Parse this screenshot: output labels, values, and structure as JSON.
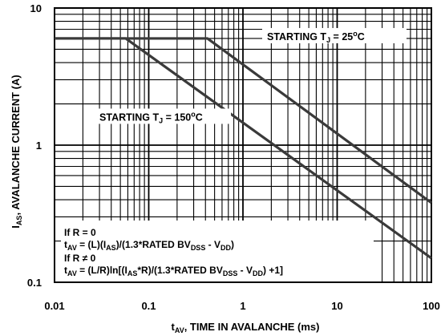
{
  "chart_data": {
    "type": "line",
    "xscale": "log",
    "yscale": "log",
    "xlim": [
      0.01,
      100
    ],
    "ylim": [
      0.1,
      10
    ],
    "grid": true,
    "x_ticks": [
      {
        "value": 0.01,
        "label": "0.01"
      },
      {
        "value": 0.1,
        "label": "0.1"
      },
      {
        "value": 1,
        "label": "1"
      },
      {
        "value": 10,
        "label": "10"
      },
      {
        "value": 100,
        "label": "100"
      }
    ],
    "y_ticks": [
      {
        "value": 0.1,
        "label": "0.1"
      },
      {
        "value": 1,
        "label": "1"
      },
      {
        "value": 10,
        "label": "10"
      }
    ],
    "xlabel": {
      "main": "t",
      "sub": "AV",
      "rest": ", TIME IN AVALANCHE (ms)"
    },
    "ylabel": {
      "main": "I",
      "sub": "AS",
      "rest": ", AVALANCHE CURRENT (A)"
    },
    "series": [
      {
        "name": "STARTING TJ = 25°C",
        "label_parts": {
          "a": "STARTING T",
          "sub": "J",
          "b": " = 25",
          "sup": "o",
          "c": "C"
        },
        "label_anchor": {
          "x": 1.8,
          "y": 6.0
        },
        "points": [
          [
            0.01,
            6.0
          ],
          [
            0.42,
            6.0
          ],
          [
            100,
            0.38
          ]
        ]
      },
      {
        "name": "STARTING TJ = 150°C",
        "label_parts": {
          "a": "STARTING T",
          "sub": "J",
          "b": " = 150",
          "sup": "o",
          "c": "C"
        },
        "label_anchor": {
          "x": 0.03,
          "y": 1.55
        },
        "points": [
          [
            0.01,
            6.0
          ],
          [
            0.057,
            6.0
          ],
          [
            100,
            0.15
          ]
        ]
      }
    ],
    "annotation": {
      "line1": "If R = 0",
      "line2": {
        "t": "t",
        "t_sub": "AV",
        "p1": " = (L)(I",
        "s1": "AS",
        "p2": ")/(1.3*RATED BV",
        "s2": "DSS",
        "p3": " - V",
        "s3": "DD",
        "p4": ")"
      },
      "line3": "If R ≠ 0",
      "line4": {
        "t": "t",
        "t_sub": "AV",
        "p1": " = (L/R)ln[(I",
        "s1": "AS",
        "p2": "*R)/(1.3*RATED BV",
        "s2": "DSS",
        "p3": " - V",
        "s3": "DD",
        "p4": ") +1]"
      }
    }
  }
}
